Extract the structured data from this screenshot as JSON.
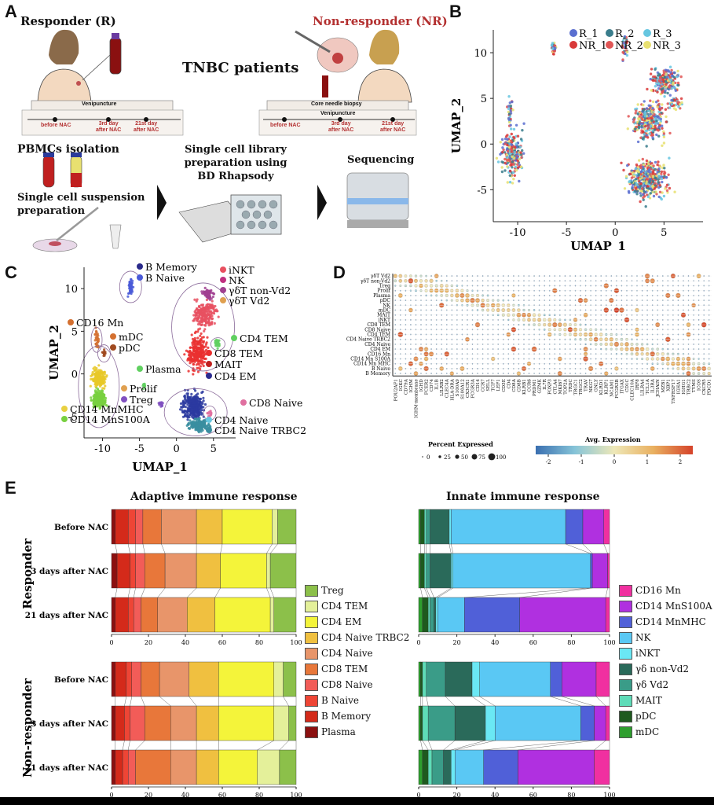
{
  "panels": {
    "a": "A",
    "b": "B",
    "c": "C",
    "d": "D",
    "e": "E"
  },
  "panel_a": {
    "responder": "Responder (R)",
    "non_responder": "Non-responder (NR)",
    "title": "TNBC patients",
    "venipuncture": "Venipuncture",
    "core_biopsy": "Core needle biopsy",
    "tl_before": "before NAC",
    "tl_3rd_a": "3rd day",
    "tl_3rd_b": "after NAC",
    "tl_21_a": "21st day",
    "tl_21_b": "after NAC",
    "pbmc": "PBMCs  isolation",
    "suspension_a": "Single cell suspension",
    "suspension_b": "preparation",
    "library_a": "Single cell library",
    "library_b": "preparation using",
    "library_c": "BD Rhapsody",
    "sequencing": "Sequencing"
  },
  "colors": {
    "responder_label": "#111111",
    "non_responder_label": "#b33030"
  },
  "panel_b_legend": [
    {
      "name": "R_1",
      "color": "#5a6fd0"
    },
    {
      "name": "R_2",
      "color": "#3a7d8c"
    },
    {
      "name": "R_3",
      "color": "#66c6e0"
    },
    {
      "name": "NR_1",
      "color": "#d93a3a"
    },
    {
      "name": "NR_2",
      "color": "#e05555"
    },
    {
      "name": "NR_3",
      "color": "#e8e070"
    }
  ],
  "panel_c_labels": {
    "b_memory": "B Memory",
    "b_naive": "B Naive",
    "inkt": "iNKT",
    "nk": "NK",
    "gdt_non": "γδT non-Vd2",
    "gdt_vd2": "γδT Vd2",
    "cd16": "CD16 Mn",
    "mdc": "mDC",
    "pdc": "pDC",
    "cd4tem": "CD4 TEM",
    "cd8tem": "CD8 TEM",
    "mait": "MAIT",
    "plasma": "Plasma",
    "cd4em": "CD4 EM",
    "prolif": "Prolif",
    "treg": "Treg",
    "cd8naive": "CD8 Naive",
    "cd14mhc": "CD14 MnMHC",
    "cd14s100": "CD14 MnS100A",
    "cd4naive": "CD4 Naive",
    "cd4naivetrbc2": "CD4 Naive TRBC2"
  },
  "panel_d": {
    "rows": [
      "γδT Vd2",
      "γδT non-Vd2",
      "Treg",
      "Prolif",
      "Plasma",
      "pDC",
      "NK",
      "mDC",
      "MAIT",
      "iNKT",
      "CD8 TEM",
      "CD8 Naive",
      "CD4 TEM",
      "CD4 Naive TRBC2",
      "CD4 Naive",
      "CD4 EM",
      "CD16 Mn",
      "CD14 Mn S100A",
      "CD14 Mn MHC",
      "B Naive",
      "B Memory"
    ],
    "genes": [
      "POU2AF1",
      "IGKC",
      "CD79A",
      "IGHM",
      "IGHM-membrane",
      "IGHD",
      "FCER2",
      "CD74",
      "IL1B",
      "LILRB2",
      "CLEC4A",
      "HLA-DRA",
      "S100A9",
      "S100A12",
      "CX3CR1",
      "FCGR3A",
      "CD14",
      "CCR7",
      "SELL",
      "TCF7",
      "LEF1",
      "CD3E",
      "CD4",
      "CD8A",
      "CD8B",
      "KLRB1",
      "CCR6",
      "PRDM1",
      "GZMK",
      "IL7R",
      "FOXP3",
      "CTLA4",
      "MKI67",
      "TOP2A",
      "TRDC",
      "TRGC1",
      "TRGC2",
      "TRAV",
      "NKG7",
      "GNLY",
      "KLRD1",
      "KLRF1",
      "NCAM1",
      "FCGR3B",
      "ITGAX",
      "CD1C",
      "CLEC10A",
      "IRF8",
      "LILRA4",
      "TCL1A",
      "IL3RA",
      "JCHAIN",
      "MZB1",
      "XBP1",
      "TNFRSF17",
      "IGHA1",
      "IGHG1",
      "TRBC2",
      "TYMS",
      "ICOS",
      "CXCR5",
      "PDCD1"
    ],
    "size_title": "Percent Expressed",
    "size_ticks": [
      "0",
      "25",
      "50",
      "75",
      "100"
    ],
    "color_title": "Avg. Expression",
    "color_ticks": [
      "-2",
      "-1",
      "0",
      "1",
      "2"
    ],
    "color_range": [
      "#3a6fb0",
      "#86c4d8",
      "#eee8b8",
      "#e9b060",
      "#d5432a"
    ]
  },
  "panel_e": {
    "adaptive_title": "Adaptive immune response",
    "innate_title": "Innate immune response",
    "responder": "Responder",
    "non_responder": "Non-responder",
    "conditions": [
      "Before NAC",
      "3 days after NAC",
      "21 days after NAC"
    ],
    "ticks": [
      "0",
      "20",
      "40",
      "60",
      "80",
      "100"
    ]
  },
  "chart_data": [
    {
      "type": "scatter",
      "xlabel": "UMAP_1",
      "ylabel": "UMAP_2",
      "xticks": [
        -10,
        -5,
        0,
        5
      ],
      "yticks": [
        -5,
        0,
        5,
        10
      ],
      "series": [
        {
          "name": "R_1"
        },
        {
          "name": "R_2"
        },
        {
          "name": "R_3"
        },
        {
          "name": "NR_1"
        },
        {
          "name": "NR_2"
        },
        {
          "name": "NR_3"
        }
      ]
    },
    {
      "type": "scatter",
      "xlabel": "UMAP_1",
      "ylabel": "UMAP_2",
      "xticks": [
        -10,
        -5,
        0,
        5
      ],
      "yticks": [
        -5,
        0,
        5,
        10
      ]
    },
    {
      "type": "bar",
      "orientation": "horizontal-stacked",
      "title": "Adaptive immune response",
      "legend": [
        "Treg",
        "CD4 TEM",
        "CD4 EM",
        "CD4 Naive TRBC2",
        "CD4 Naive",
        "CD8 TEM",
        "CD8 Naive",
        "B Naive",
        "B Memory",
        "Plasma"
      ],
      "stack_order": [
        "Plasma",
        "B Memory",
        "B Naive",
        "CD8 Naive",
        "CD8 TEM",
        "CD4 Naive",
        "CD4 Naive TRBC2",
        "CD4 EM",
        "CD4 TEM",
        "Treg"
      ],
      "colors": {
        "Plasma": "#8b1010",
        "B Memory": "#d42a1a",
        "B Naive": "#ee4535",
        "CD8 Naive": "#f25c58",
        "CD8 TEM": "#e8773a",
        "CD4 Naive": "#e8956a",
        "CD4 Naive TRBC2": "#f0c040",
        "CD4 EM": "#f4f43a",
        "CD4 TEM": "#e4f09a",
        "Treg": "#8cc04a"
      },
      "groups": [
        {
          "group": "Responder",
          "condition": "Before NAC",
          "values": [
            2,
            7,
            4,
            4,
            10,
            19,
            14,
            27,
            3,
            10
          ]
        },
        {
          "group": "Responder",
          "condition": "3 days after NAC",
          "values": [
            3,
            7,
            3,
            5,
            11,
            17,
            13,
            25,
            2,
            14
          ]
        },
        {
          "group": "Responder",
          "condition": "21 days after NAC",
          "values": [
            2,
            7,
            3,
            4,
            9,
            16,
            15,
            30,
            2,
            12
          ]
        },
        {
          "group": "Non-responder",
          "condition": "Before NAC",
          "values": [
            2,
            6,
            3,
            5,
            10,
            16,
            16,
            30,
            5,
            7
          ]
        },
        {
          "group": "Non-responder",
          "condition": "3 days after NAC",
          "values": [
            2,
            5,
            3,
            8,
            14,
            14,
            12,
            30,
            8,
            4
          ]
        },
        {
          "group": "Non-responder",
          "condition": "21 days after NAC",
          "values": [
            2,
            4,
            3,
            4,
            19,
            14,
            12,
            21,
            12,
            9
          ]
        }
      ],
      "xlim": [
        0,
        100
      ]
    },
    {
      "type": "bar",
      "orientation": "horizontal-stacked",
      "title": "Innate immune response",
      "legend": [
        "CD16 Mn",
        "CD14 MnS100A",
        "CD14 MnMHC",
        "NK",
        "iNKT",
        "γδ non-Vd2",
        "γδ Vd2",
        "MAIT",
        "pDC",
        "mDC"
      ],
      "stack_order": [
        "mDC",
        "pDC",
        "MAIT",
        "γδ Vd2",
        "γδ non-Vd2",
        "iNKT",
        "NK",
        "CD14 MnMHC",
        "CD14 MnS100A",
        "CD16 Mn"
      ],
      "colors": {
        "mDC": "#2e9e2e",
        "pDC": "#1e5a1e",
        "MAIT": "#5edcb8",
        "γδ Vd2": "#3a9c88",
        "γδ non-Vd2": "#2a6a5a",
        "iNKT": "#6ae8f4",
        "NK": "#5ac8f4",
        "CD14 MnMHC": "#5060d8",
        "CD14 MnS100A": "#b030e0",
        "CD16 Mn": "#f030a0"
      },
      "groups": [
        {
          "group": "Responder",
          "condition": "Before NAC",
          "values": [
            1,
            2,
            1,
            2,
            10,
            1,
            60,
            9,
            11,
            3
          ]
        },
        {
          "group": "Responder",
          "condition": "3 days after NAC",
          "values": [
            1,
            2,
            1,
            2,
            11,
            1,
            72,
            1,
            8,
            1
          ]
        },
        {
          "group": "Responder",
          "condition": "21 days after NAC",
          "values": [
            2,
            3,
            1,
            2,
            1,
            1,
            14,
            29,
            45,
            2
          ]
        },
        {
          "group": "Non-responder",
          "condition": "Before NAC",
          "values": [
            1,
            1,
            2,
            10,
            14,
            4,
            37,
            6,
            18,
            7
          ]
        },
        {
          "group": "Non-responder",
          "condition": "3 days after NAC",
          "values": [
            1,
            1,
            3,
            14,
            16,
            5,
            45,
            7,
            6,
            2
          ]
        },
        {
          "group": "Non-responder",
          "condition": "21 days after NAC",
          "values": [
            2,
            3,
            2,
            6,
            4,
            2,
            15,
            18,
            40,
            8
          ]
        }
      ],
      "xlim": [
        0,
        100
      ]
    }
  ]
}
